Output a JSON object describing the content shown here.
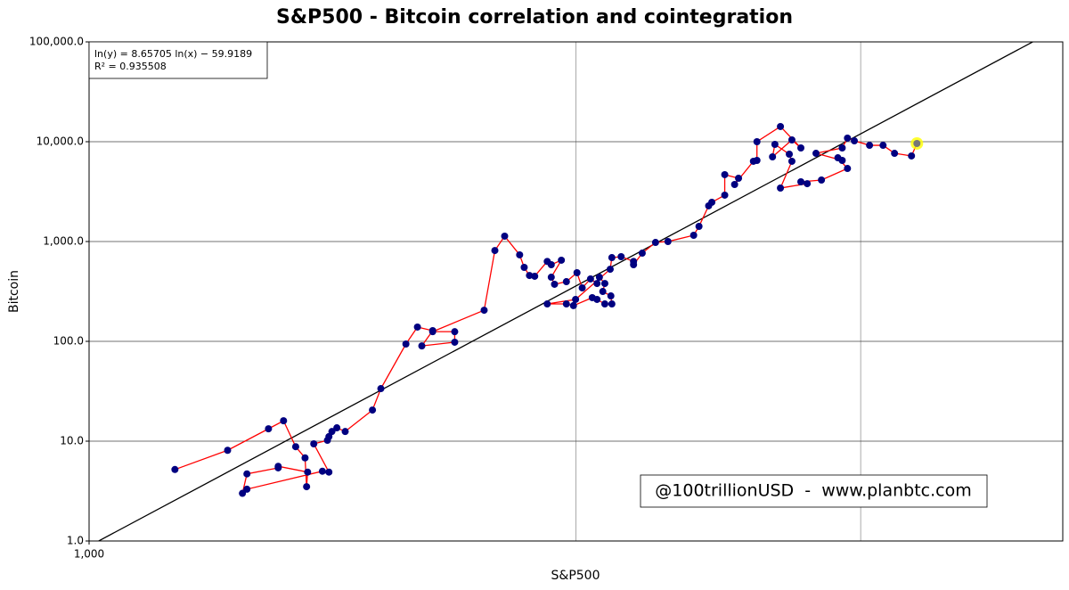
{
  "chart_data": {
    "type": "scatter",
    "title": "S&P500 - Bitcoin correlation and cointegration",
    "x_label": "S&P500",
    "y_label": "Bitcoin",
    "annotations": [
      "ln(y) = 8.65705 ln(x) − 59.9189",
      "R² = 0.935508"
    ],
    "watermark": "@100trillionUSD  -  www.planbtc.com",
    "fit": {
      "slope": 8.65705,
      "intercept": -59.9189,
      "color": "#000000"
    },
    "x_log": true,
    "y_log": true,
    "grid": true,
    "xlim": [
      1000,
      4000
    ],
    "xticks": [
      {
        "value": 1000,
        "label": "1,000"
      }
    ],
    "xgrid": [
      2000,
      3000
    ],
    "ylim": [
      1,
      100000
    ],
    "yticks": [
      {
        "value": 1,
        "label": "1.0"
      },
      {
        "value": 10,
        "label": "10.0"
      },
      {
        "value": 100,
        "label": "100.0"
      },
      {
        "value": 1000,
        "label": "1,000.0"
      },
      {
        "value": 10000,
        "label": "10,000.0"
      },
      {
        "value": 100000,
        "label": "100,000.0"
      }
    ],
    "line_color": "#ff0000",
    "marker_color": "#000080",
    "highlight_color": "#ffff00",
    "x": [
      1130,
      1218,
      1291,
      1319,
      1342,
      1360,
      1363,
      1365,
      1309,
      1309,
      1252,
      1244,
      1252,
      1394,
      1407,
      1377,
      1404,
      1407,
      1413,
      1423,
      1440,
      1497,
      1515,
      1570,
      1596,
      1631,
      1606,
      1683,
      1683,
      1631,
      1755,
      1782,
      1807,
      1846,
      1858,
      1872,
      1886,
      1920,
      1931,
      1959,
      1931,
      1940,
      1973,
      2003,
      2018,
      2042,
      2061,
      2068,
      2084,
      2078,
      2102,
      2105,
      2084,
      2061,
      2047,
      1993,
      1973,
      1920,
      1999,
      2100,
      2105,
      2133,
      2171,
      2171,
      2198,
      2240,
      2280,
      2365,
      2383,
      2416,
      2427,
      2472,
      2472,
      2521,
      2507,
      2575,
      2588,
      2588,
      2676,
      2755,
      2720,
      2646,
      2655,
      2710,
      2720,
      2676,
      2780,
      2755,
      2837,
      2944,
      2904,
      2922,
      2815,
      2922,
      2944,
      2973,
      3038,
      3097,
      3148,
      3225,
      3250
    ],
    "y": [
      5.2,
      8.1,
      13.3,
      16.0,
      8.8,
      6.8,
      3.5,
      4.9,
      5.6,
      5.4,
      4.7,
      3.0,
      3.3,
      5.0,
      4.9,
      9.4,
      10.2,
      11.1,
      12.5,
      13.6,
      12.5,
      20.5,
      33.6,
      94,
      139,
      128,
      90,
      98,
      125,
      125,
      205,
      813,
      1132,
      735,
      551,
      457,
      449,
      632,
      586,
      650,
      439,
      373,
      396,
      487,
      343,
      422,
      380,
      439,
      380,
      316,
      285,
      237,
      237,
      263,
      274,
      228,
      237,
      237,
      263,
      528,
      690,
      705,
      632,
      586,
      765,
      979,
      1000,
      1155,
      1418,
      2277,
      2473,
      2914,
      4677,
      4305,
      3727,
      6364,
      6493,
      10000,
      14190,
      8660,
      10420,
      7050,
      9400,
      7500,
      6364,
      3433,
      3800,
      3966,
      4130,
      5395,
      6900,
      6493,
      7650,
      8660,
      10860,
      10200,
      9200,
      9200,
      7650,
      7200,
      9600
    ]
  }
}
